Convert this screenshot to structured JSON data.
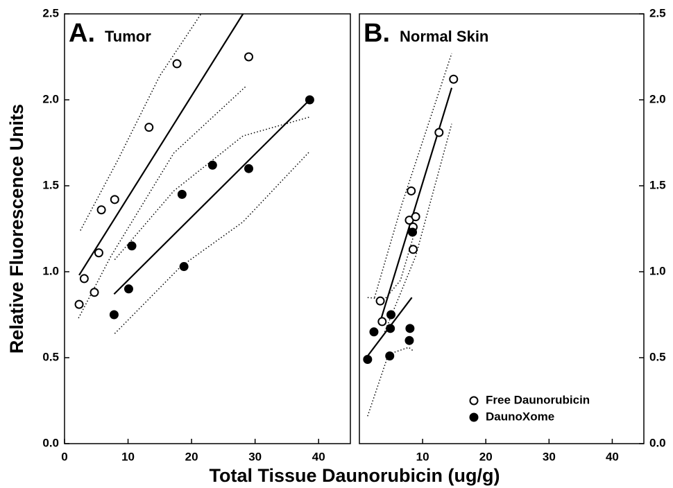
{
  "xlabel": "Total Tissue Daunorubicin (ug/g)",
  "ylabel": "Relative Fluorescence Units",
  "chart_data": [
    {
      "type": "scatter",
      "panel_label": "A.",
      "title": "Tumor",
      "xlim": [
        0,
        45
      ],
      "ylim": [
        0,
        2.5
      ],
      "xticks": [
        0,
        10,
        20,
        30,
        40
      ],
      "yticks": [
        {
          "value": 0,
          "label": "0.0"
        },
        0.5,
        {
          "value": 1,
          "label": "1.0"
        },
        1.5,
        {
          "value": 2,
          "label": "2.0"
        },
        2.5
      ],
      "yaxis_side": "left",
      "series": [
        {
          "marker": "open",
          "color": "#000000",
          "x": [
            2.3,
            3.1,
            4.7,
            5.4,
            5.8,
            7.9,
            13.3,
            17.7,
            29.0
          ],
          "values": [
            0.81,
            0.96,
            0.88,
            1.11,
            1.36,
            1.42,
            1.84,
            2.21,
            2.25
          ],
          "fit": {
            "x": [
              2.3,
              28.1
            ],
            "y": [
              0.98,
              2.5
            ]
          },
          "band_upper": {
            "x": [
              2.5,
              8.4,
              15,
              21.5
            ],
            "y": [
              1.24,
              1.65,
              2.14,
              2.5
            ]
          },
          "band_lower": {
            "x": [
              2.2,
              7.3,
              17.2,
              28.6
            ],
            "y": [
              0.73,
              1.09,
              1.69,
              2.08
            ]
          }
        },
        {
          "marker": "filled",
          "color": "#000000",
          "x": [
            7.8,
            10.1,
            10.6,
            18.5,
            18.8,
            23.3,
            29.0,
            38.6
          ],
          "values": [
            0.75,
            0.9,
            1.15,
            1.45,
            1.03,
            1.62,
            1.6,
            2.0
          ],
          "fit": {
            "x": [
              7.8,
              38.6
            ],
            "y": [
              0.87,
              2.0
            ]
          },
          "band_upper": {
            "x": [
              7.9,
              17.2,
              28.1,
              38.6
            ],
            "y": [
              1.07,
              1.47,
              1.79,
              1.9
            ]
          },
          "band_lower": {
            "x": [
              7.9,
              18.3,
              28.1,
              38.6
            ],
            "y": [
              0.64,
              1.03,
              1.29,
              1.7
            ]
          }
        }
      ]
    },
    {
      "type": "scatter",
      "panel_label": "B.",
      "title": "Normal Skin",
      "xlim": [
        0,
        45
      ],
      "ylim": [
        0,
        2.5
      ],
      "xticks": [
        10,
        20,
        30,
        40
      ],
      "yticks": [
        {
          "value": 0,
          "label": "0.0"
        },
        0.5,
        {
          "value": 1,
          "label": "1.0"
        },
        1.5,
        {
          "value": 2,
          "label": "2.0"
        },
        2.5
      ],
      "yaxis_side": "right",
      "legend": "lower right",
      "series": [
        {
          "name": "Free Daunorubicin",
          "marker": "open",
          "color": "#000000",
          "x": [
            3.3,
            3.6,
            7.9,
            8.2,
            8.5,
            8.9,
            8.5,
            12.6,
            14.9
          ],
          "values": [
            0.83,
            0.71,
            1.3,
            1.47,
            1.26,
            1.32,
            1.13,
            1.81,
            2.12
          ],
          "fit": {
            "x": [
              3.3,
              14.6
            ],
            "y": [
              0.71,
              2.07
            ]
          },
          "band_upper": {
            "x": [
              2.4,
              6.7,
              14.6
            ],
            "y": [
              0.85,
              1.39,
              2.27
            ]
          },
          "band_lower": {
            "x": [
              4.0,
              8.9,
              14.6
            ],
            "y": [
              0.65,
              1.09,
              1.86
            ]
          }
        },
        {
          "name": "DaunoXome",
          "marker": "filled",
          "color": "#000000",
          "x": [
            1.3,
            2.3,
            4.9,
            5.0,
            4.8,
            8.4,
            8.0,
            7.9
          ],
          "values": [
            0.49,
            0.65,
            0.67,
            0.75,
            0.51,
            1.23,
            0.67,
            0.6
          ],
          "fit": {
            "x": [
              1.3,
              8.3
            ],
            "y": [
              0.51,
              0.85
            ]
          },
          "band_upper": {
            "x": [
              1.3,
              4.0,
              6.5,
              8.5
            ],
            "y": [
              0.85,
              0.84,
              0.95,
              1.2
            ]
          },
          "band_lower": {
            "x": [
              1.3,
              4.6,
              7.8,
              8.5
            ],
            "y": [
              0.16,
              0.52,
              0.56,
              0.54
            ]
          }
        }
      ]
    }
  ]
}
